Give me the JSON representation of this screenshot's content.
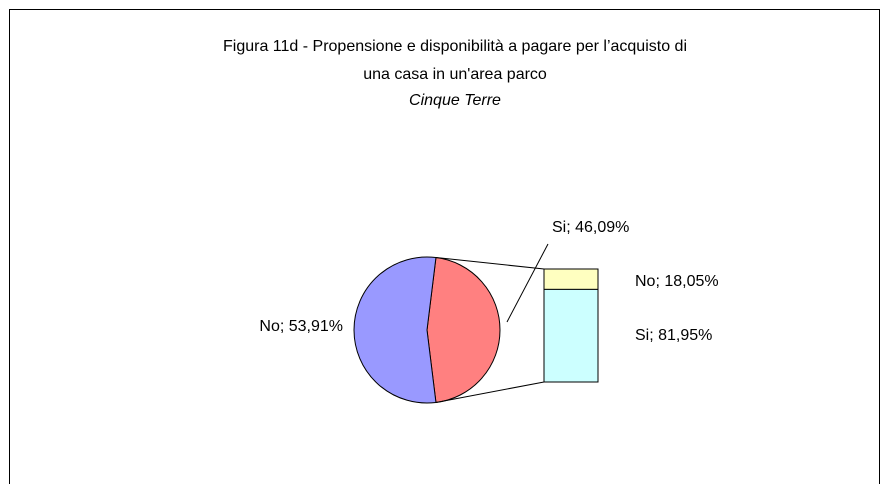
{
  "chart_data": {
    "type": "bar-of-pie",
    "title": "Figura 11d - Propensione e disponibilità a pagare per l’acquisto di",
    "title_line2": "una casa in un'area parco",
    "subtitle": "Cinque Terre",
    "pie": {
      "values": [
        53.91,
        46.09
      ],
      "value_labels": [
        "No; 53,91%",
        "Si; 46,09%"
      ],
      "colors": [
        "#9999ff",
        "#ff8080"
      ]
    },
    "bar": {
      "values": [
        18.05,
        81.95
      ],
      "value_labels": [
        "No; 18,05%",
        "Si; 81,95%"
      ],
      "colors": [
        "#ffffc0",
        "#ccffff"
      ]
    }
  }
}
